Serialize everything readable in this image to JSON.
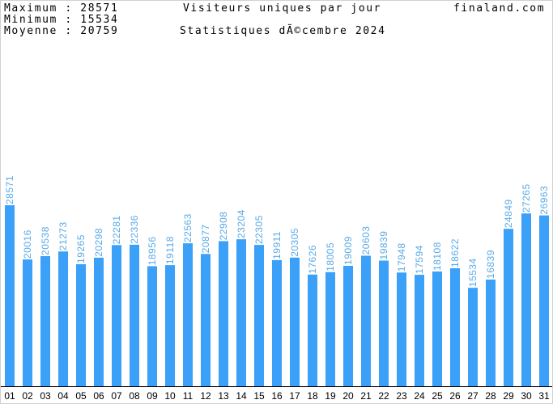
{
  "stats": {
    "max_label": "Maximum : 28571",
    "min_label": "Minimum : 15534",
    "avg_label": "Moyenne : 20759"
  },
  "title": "Visiteurs uniques par jour",
  "subtitle": "Statistiques dÃ©cembre 2024",
  "site": "finaland.com",
  "colors": {
    "bar": "#3ba0f7",
    "value_label": "#5aa9e6",
    "axis": "#000000"
  },
  "chart_data": {
    "type": "bar",
    "title": "Visiteurs uniques par jour",
    "subtitle": "Statistiques dÃ©cembre 2024",
    "categories": [
      "01",
      "02",
      "03",
      "04",
      "05",
      "06",
      "07",
      "08",
      "09",
      "10",
      "11",
      "12",
      "13",
      "14",
      "15",
      "16",
      "17",
      "18",
      "19",
      "20",
      "21",
      "22",
      "23",
      "24",
      "25",
      "26",
      "27",
      "28",
      "29",
      "30",
      "31"
    ],
    "values": [
      28571,
      20016,
      20538,
      21273,
      19265,
      20298,
      22281,
      22336,
      18956,
      19118,
      22563,
      20877,
      22908,
      23204,
      22305,
      19911,
      20305,
      17626,
      18005,
      19009,
      20603,
      19839,
      17948,
      17594,
      18108,
      18622,
      15534,
      16839,
      24849,
      27265,
      26963
    ],
    "ylim": [
      0,
      28571
    ],
    "grid": false,
    "legend": "none"
  }
}
